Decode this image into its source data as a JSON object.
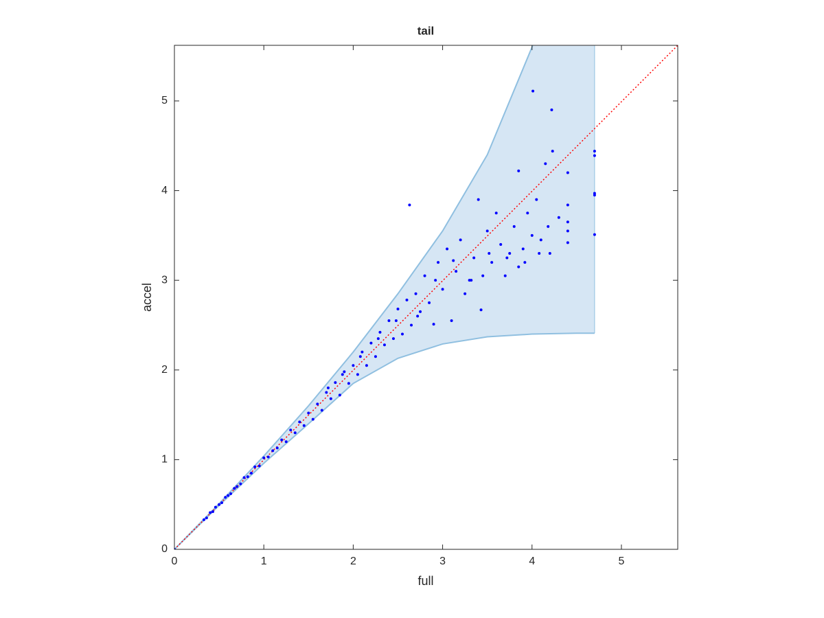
{
  "chart_data": {
    "type": "scatter",
    "title": "tail",
    "xlabel": "full",
    "ylabel": "accel",
    "xlim": [
      0,
      5.63
    ],
    "ylim": [
      0,
      5.62
    ],
    "xticks": [
      0,
      1,
      2,
      3,
      4,
      5
    ],
    "yticks": [
      0,
      1,
      2,
      3,
      4,
      5
    ],
    "color": "#0000ff",
    "diagonal_color": "#ff0000",
    "band": {
      "fill": "#d6e6f4",
      "edge": "#8fbfe0",
      "x": [
        0,
        0.5,
        1,
        1.5,
        2,
        2.5,
        3,
        3.5,
        4,
        4.5,
        4.7
      ],
      "upper": [
        0,
        0.51,
        1.04,
        1.6,
        2.2,
        2.85,
        3.55,
        4.4,
        5.6,
        7.0,
        7.6
      ],
      "lower": [
        0,
        0.49,
        0.96,
        1.4,
        1.85,
        2.13,
        2.29,
        2.37,
        2.4,
        2.41,
        2.41
      ]
    },
    "x": [
      0,
      0.33,
      0.36,
      0.4,
      0.43,
      0.46,
      0.5,
      0.53,
      0.57,
      0.6,
      0.63,
      0.67,
      0.7,
      0.74,
      0.78,
      0.82,
      0.86,
      0.9,
      0.95,
      1.0,
      1.05,
      1.1,
      1.15,
      1.2,
      1.25,
      1.3,
      1.35,
      1.4,
      1.45,
      1.5,
      1.55,
      1.6,
      1.65,
      1.7,
      1.75,
      1.8,
      1.85,
      1.9,
      1.95,
      2.0,
      2.05,
      2.1,
      2.15,
      2.2,
      2.25,
      2.3,
      2.35,
      2.4,
      2.45,
      2.5,
      2.55,
      2.6,
      2.63,
      2.65,
      2.7,
      2.75,
      2.8,
      2.85,
      2.9,
      2.95,
      3.0,
      3.05,
      3.1,
      3.15,
      3.2,
      3.25,
      3.3,
      3.35,
      3.4,
      3.43,
      3.45,
      3.5,
      3.55,
      3.6,
      3.65,
      3.7,
      3.75,
      3.8,
      3.85,
      3.85,
      3.9,
      3.95,
      4.0,
      4.01,
      4.05,
      4.1,
      4.15,
      4.2,
      4.22,
      4.23,
      4.3,
      4.4,
      4.4,
      4.4,
      4.4,
      4.4,
      4.7,
      4.7,
      4.7,
      4.7,
      4.7,
      1.72,
      1.88,
      2.08,
      2.28,
      2.48,
      2.72,
      2.92,
      3.12,
      3.32,
      3.52,
      3.72,
      3.92,
      4.08,
      4.18
    ],
    "values": [
      0,
      0.33,
      0.35,
      0.41,
      0.42,
      0.47,
      0.5,
      0.52,
      0.58,
      0.6,
      0.62,
      0.68,
      0.7,
      0.73,
      0.8,
      0.81,
      0.85,
      0.92,
      0.93,
      1.02,
      1.03,
      1.1,
      1.13,
      1.22,
      1.2,
      1.33,
      1.3,
      1.42,
      1.38,
      1.52,
      1.45,
      1.62,
      1.55,
      1.75,
      1.68,
      1.86,
      1.72,
      1.98,
      1.85,
      2.05,
      1.95,
      2.2,
      2.05,
      2.3,
      2.15,
      2.42,
      2.28,
      2.55,
      2.35,
      2.68,
      2.4,
      2.78,
      3.84,
      2.5,
      2.85,
      2.65,
      3.05,
      2.75,
      2.51,
      3.2,
      2.9,
      3.35,
      2.55,
      3.1,
      3.45,
      2.85,
      3.0,
      3.25,
      3.9,
      2.67,
      3.05,
      3.55,
      3.2,
      3.75,
      3.4,
      3.05,
      3.3,
      3.6,
      4.22,
      3.15,
      3.35,
      3.75,
      3.5,
      5.11,
      3.9,
      3.45,
      4.3,
      3.3,
      4.9,
      4.44,
      3.7,
      3.42,
      3.55,
      3.65,
      3.84,
      4.2,
      3.51,
      3.95,
      3.97,
      4.39,
      4.44,
      1.8,
      1.95,
      2.15,
      2.35,
      2.55,
      2.6,
      3.0,
      3.22,
      3.0,
      3.3,
      3.25,
      3.2,
      3.3,
      3.6
    ]
  }
}
